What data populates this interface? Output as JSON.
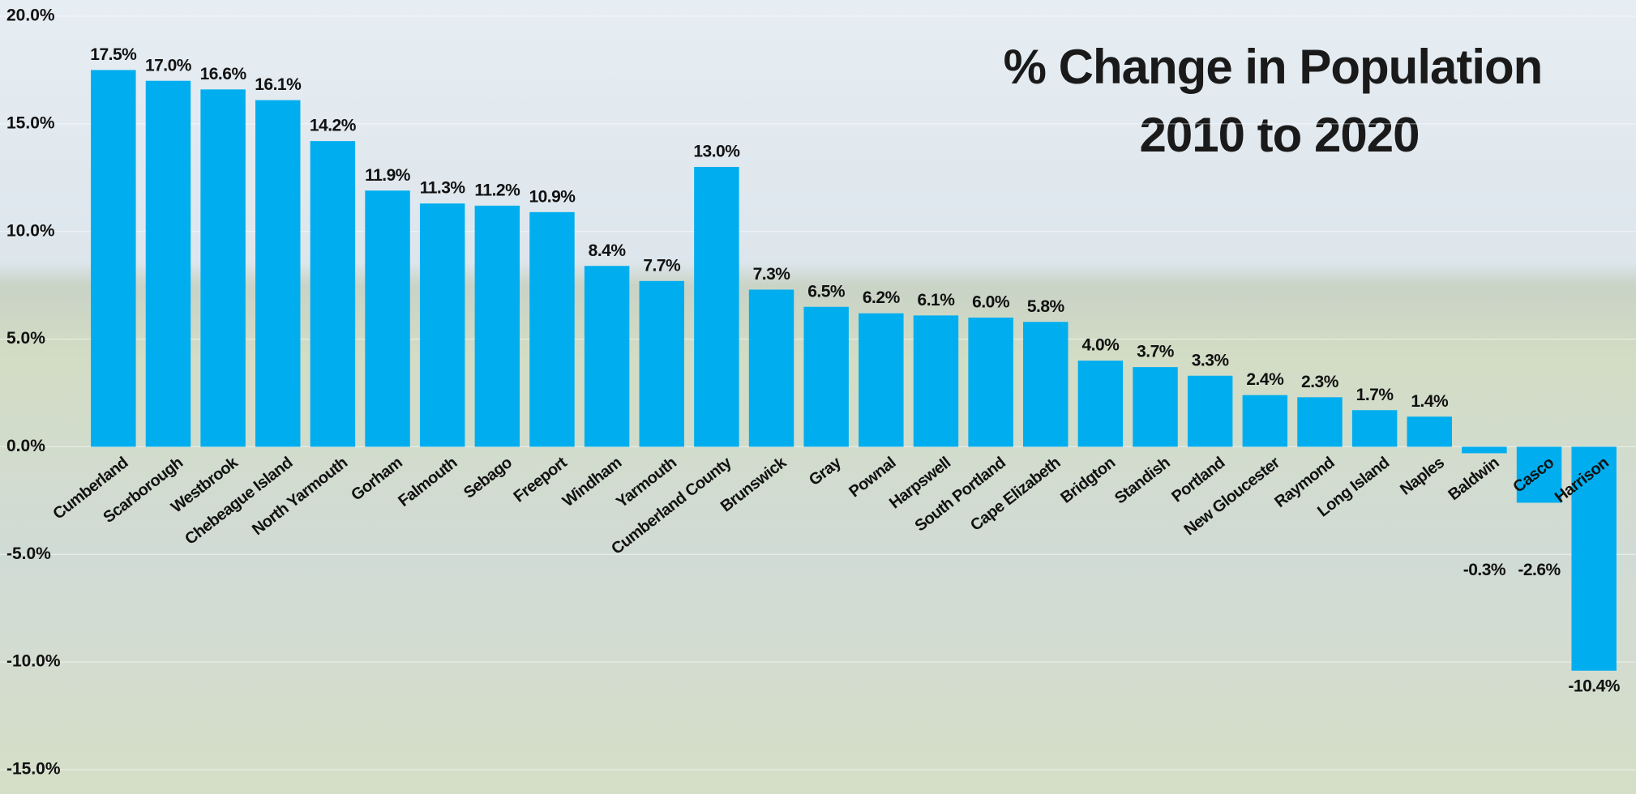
{
  "chart_data": {
    "type": "bar",
    "title": [
      "% Change in Population",
      "2010 to 2020"
    ],
    "categories": [
      "Cumberland",
      "Scarborough",
      "Westbrook",
      "Chebeague Island",
      "North Yarmouth",
      "Gorham",
      "Falmouth",
      "Sebago",
      "Freeport",
      "Windham",
      "Yarmouth",
      "Cumberland County",
      "Brunswick",
      "Gray",
      "Pownal",
      "Harpswell",
      "South Portland",
      "Cape Elizabeth",
      "Bridgton",
      "Standish",
      "Portland",
      "New Gloucester",
      "Raymond",
      "Long Island",
      "Naples",
      "Baldwin",
      "Casco",
      "Harrison"
    ],
    "values": [
      17.5,
      17.0,
      16.6,
      16.1,
      14.2,
      11.9,
      11.3,
      11.2,
      10.9,
      8.4,
      7.7,
      13.0,
      7.3,
      6.5,
      6.2,
      6.1,
      6.0,
      5.8,
      4.0,
      3.7,
      3.3,
      2.4,
      2.3,
      1.7,
      1.4,
      -0.3,
      -2.6,
      -10.4
    ],
    "value_labels": [
      "17.5%",
      "17.0%",
      "16.6%",
      "16.1%",
      "14.2%",
      "11.9%",
      "11.3%",
      "11.2%",
      "10.9%",
      "8.4%",
      "7.7%",
      "13.0%",
      "7.3%",
      "6.5%",
      "6.2%",
      "6.1%",
      "6.0%",
      "5.8%",
      "4.0%",
      "3.7%",
      "3.3%",
      "2.4%",
      "2.3%",
      "1.7%",
      "1.4%",
      "-0.3%",
      "-2.6%",
      "-10.4%"
    ],
    "color": "#00aeef",
    "ylim": [
      -15,
      20
    ],
    "yticks": [
      {
        "value": -15,
        "label": "-15.0%"
      },
      {
        "value": -10,
        "label": "-10.0%"
      },
      {
        "value": -5,
        "label": "-5.0%"
      },
      {
        "value": 0,
        "label": "0.0%"
      },
      {
        "value": 5,
        "label": "5.0%"
      },
      {
        "value": 10,
        "label": "10.0%"
      },
      {
        "value": 15,
        "label": "15.0%"
      },
      {
        "value": 20,
        "label": "20.0%"
      }
    ],
    "grid": true
  }
}
